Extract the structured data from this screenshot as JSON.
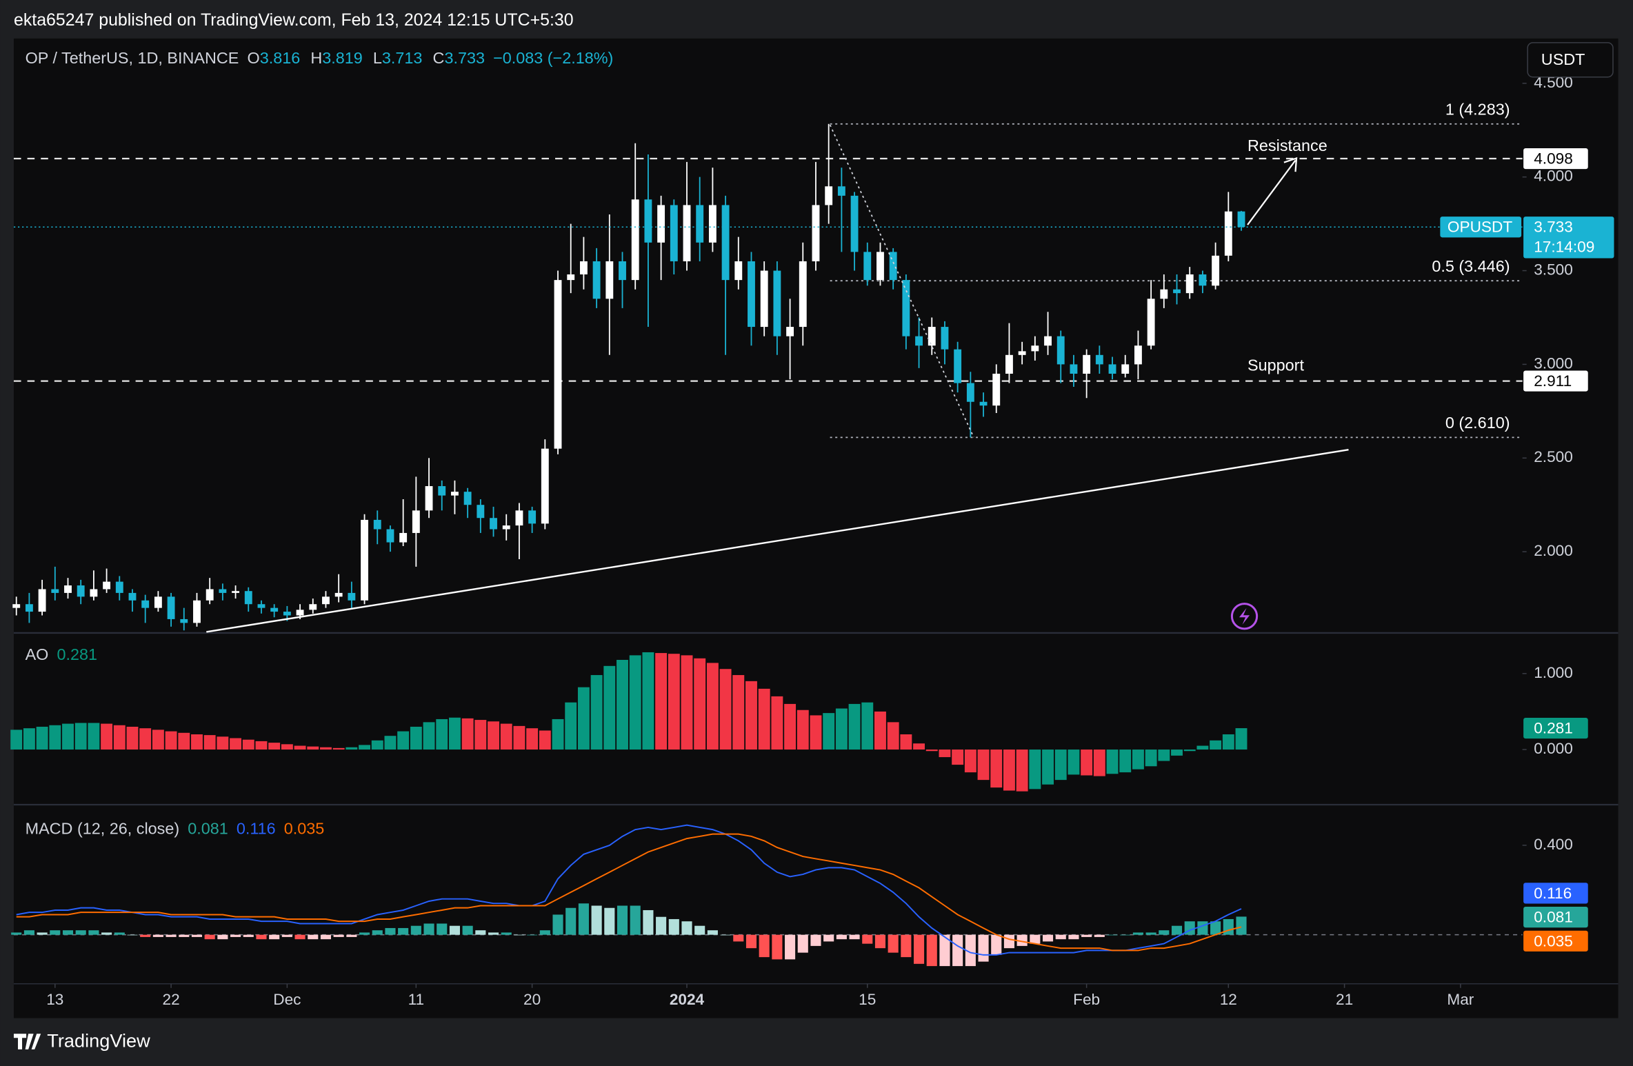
{
  "header": "ekta65247 published on TradingView.com, Feb 13, 2024 12:15 UTC+5:30",
  "footer": "TradingView",
  "chart_data": [
    {
      "type": "candlestick",
      "title": "OP / TetherUS, 1D, BINANCE",
      "ohlc_labels": [
        "O",
        "H",
        "L",
        "C"
      ],
      "change_label": "−0.083 (−2.18%)",
      "symbol": "OPUSDT",
      "countdown": "17:14:09",
      "currency": "USDT",
      "up_color": "#ffffff",
      "down_color": "#1ab3d3",
      "open": [
        1.7,
        1.72,
        1.68,
        1.8,
        1.78,
        1.82,
        1.76,
        1.8,
        1.84,
        1.78,
        1.74,
        1.7,
        1.76,
        1.64,
        1.62,
        1.74,
        1.8,
        1.78,
        1.79,
        1.72,
        1.7,
        1.68,
        1.66,
        1.69,
        1.72,
        1.76,
        1.78,
        1.74,
        2.17,
        2.12,
        2.05,
        2.1,
        2.22,
        2.35,
        2.3,
        2.32,
        2.25,
        2.18,
        2.12,
        2.14,
        2.22,
        2.15,
        2.55,
        3.45,
        3.48,
        3.55,
        3.35,
        3.55,
        3.45,
        3.88,
        3.65,
        3.85,
        3.55,
        3.85,
        3.65,
        3.85,
        3.45,
        3.55,
        3.2,
        3.5,
        3.15,
        3.2,
        3.55,
        3.85,
        3.95,
        3.9,
        3.6,
        3.45,
        3.6,
        3.45,
        3.15,
        3.1,
        3.2,
        3.08,
        2.9,
        2.8,
        2.78,
        2.95,
        3.05,
        3.07,
        3.1,
        3.15,
        3.0,
        2.95,
        3.05,
        3.0,
        2.95,
        3.0,
        3.1,
        3.35,
        3.4,
        3.38,
        3.48,
        3.42,
        3.58,
        3.816
      ],
      "high": [
        1.76,
        1.78,
        1.85,
        1.92,
        1.86,
        1.85,
        1.9,
        1.91,
        1.87,
        1.8,
        1.77,
        1.79,
        1.78,
        1.7,
        1.78,
        1.86,
        1.83,
        1.82,
        1.81,
        1.74,
        1.72,
        1.71,
        1.72,
        1.75,
        1.79,
        1.88,
        1.84,
        2.2,
        2.22,
        2.14,
        2.28,
        2.4,
        2.5,
        2.38,
        2.38,
        2.34,
        2.28,
        2.24,
        2.2,
        2.26,
        2.24,
        2.6,
        3.5,
        3.75,
        3.68,
        3.62,
        3.8,
        3.6,
        4.18,
        4.12,
        3.9,
        3.88,
        4.08,
        4.0,
        4.05,
        3.9,
        3.68,
        3.6,
        3.55,
        3.55,
        3.35,
        3.65,
        4.08,
        4.283,
        4.05,
        3.92,
        3.65,
        3.65,
        3.62,
        3.48,
        3.25,
        3.25,
        3.23,
        3.12,
        2.96,
        2.85,
        3.0,
        3.22,
        3.12,
        3.15,
        3.28,
        3.18,
        3.05,
        3.08,
        3.1,
        3.04,
        3.05,
        3.18,
        3.45,
        3.48,
        3.48,
        3.52,
        3.5,
        3.65,
        3.92,
        3.819
      ],
      "low": [
        1.66,
        1.62,
        1.66,
        1.74,
        1.75,
        1.72,
        1.74,
        1.78,
        1.74,
        1.68,
        1.62,
        1.68,
        1.6,
        1.58,
        1.6,
        1.72,
        1.74,
        1.75,
        1.68,
        1.67,
        1.65,
        1.63,
        1.64,
        1.67,
        1.7,
        1.73,
        1.7,
        1.72,
        2.04,
        2.0,
        2.03,
        1.92,
        2.18,
        2.22,
        2.2,
        2.18,
        2.1,
        2.08,
        2.06,
        1.96,
        2.1,
        2.12,
        2.52,
        3.38,
        3.4,
        3.3,
        3.05,
        3.3,
        3.4,
        3.2,
        3.45,
        3.48,
        3.5,
        3.55,
        3.6,
        3.05,
        3.4,
        3.1,
        3.15,
        3.05,
        2.92,
        3.1,
        3.5,
        3.75,
        3.6,
        3.5,
        3.42,
        3.42,
        3.4,
        3.08,
        2.98,
        3.05,
        3.0,
        2.85,
        2.61,
        2.72,
        2.74,
        2.9,
        3.0,
        3.02,
        3.05,
        2.9,
        2.88,
        2.82,
        2.95,
        2.92,
        2.93,
        2.92,
        3.08,
        3.3,
        3.32,
        3.35,
        3.38,
        3.4,
        3.55,
        3.713
      ],
      "close": [
        1.72,
        1.68,
        1.8,
        1.78,
        1.82,
        1.76,
        1.8,
        1.84,
        1.78,
        1.74,
        1.7,
        1.76,
        1.64,
        1.62,
        1.74,
        1.8,
        1.78,
        1.79,
        1.72,
        1.7,
        1.68,
        1.66,
        1.69,
        1.72,
        1.76,
        1.78,
        1.74,
        2.17,
        2.12,
        2.05,
        2.1,
        2.22,
        2.35,
        2.3,
        2.32,
        2.25,
        2.18,
        2.12,
        2.14,
        2.22,
        2.15,
        2.55,
        3.45,
        3.48,
        3.55,
        3.35,
        3.55,
        3.45,
        3.88,
        3.65,
        3.85,
        3.55,
        3.85,
        3.65,
        3.85,
        3.45,
        3.55,
        3.2,
        3.5,
        3.15,
        3.2,
        3.55,
        3.85,
        3.95,
        3.9,
        3.6,
        3.45,
        3.6,
        3.45,
        3.15,
        3.1,
        3.2,
        3.08,
        2.9,
        2.8,
        2.78,
        2.95,
        3.05,
        3.07,
        3.1,
        3.15,
        3.0,
        2.95,
        3.05,
        3.0,
        2.95,
        3.0,
        3.1,
        3.35,
        3.4,
        3.38,
        3.48,
        3.42,
        3.58,
        3.816,
        3.733
      ],
      "ylim": [
        1.572,
        4.739
      ],
      "yticks": [
        {
          "value": 4.5,
          "label": "4.500"
        },
        {
          "value": 4,
          "label": "4.000"
        },
        {
          "value": 3.5,
          "label": "3.500"
        },
        {
          "value": 3,
          "label": "3.000"
        },
        {
          "value": 2.5,
          "label": "2.500"
        },
        {
          "value": 2,
          "label": "2.000"
        }
      ],
      "xlim": [
        -0.2,
        116.8
      ],
      "xticks": [
        {
          "value": 3,
          "label": "13"
        },
        {
          "value": 12,
          "label": "22"
        },
        {
          "value": 21,
          "label": "Dec"
        },
        {
          "value": 31,
          "label": "11"
        },
        {
          "value": 40,
          "label": "20"
        },
        {
          "value": 52,
          "label": "2024"
        },
        {
          "value": 66,
          "label": "15"
        },
        {
          "value": 83,
          "label": "Feb"
        },
        {
          "value": 94,
          "label": "12"
        },
        {
          "value": 103,
          "label": "21"
        },
        {
          "value": 112,
          "label": "Mar"
        }
      ],
      "hlines": [
        4.098,
        2.911
      ],
      "fib": [
        {
          "label": "1 (4.283)",
          "value": 4.283
        },
        {
          "label": "0.5 (3.446)",
          "value": 3.446
        },
        {
          "label": "0 (2.610)",
          "value": 2.61
        }
      ],
      "annotations": [
        "Resistance",
        "Support"
      ]
    },
    {
      "type": "bar",
      "title": "AO",
      "up_color": "#089981",
      "down_color": "#f23645",
      "values": [
        0.26,
        0.28,
        0.3,
        0.32,
        0.34,
        0.35,
        0.35,
        0.34,
        0.32,
        0.3,
        0.28,
        0.26,
        0.24,
        0.22,
        0.2,
        0.19,
        0.17,
        0.15,
        0.13,
        0.11,
        0.09,
        0.07,
        0.05,
        0.04,
        0.03,
        0.02,
        0.03,
        0.06,
        0.12,
        0.18,
        0.24,
        0.3,
        0.36,
        0.4,
        0.42,
        0.41,
        0.39,
        0.37,
        0.34,
        0.31,
        0.28,
        0.25,
        0.4,
        0.62,
        0.82,
        0.98,
        1.1,
        1.18,
        1.24,
        1.28,
        1.27,
        1.26,
        1.24,
        1.2,
        1.14,
        1.06,
        0.98,
        0.9,
        0.8,
        0.7,
        0.6,
        0.52,
        0.45,
        0.48,
        0.54,
        0.6,
        0.62,
        0.5,
        0.36,
        0.2,
        0.08,
        -0.02,
        -0.1,
        -0.2,
        -0.3,
        -0.4,
        -0.5,
        -0.54,
        -0.55,
        -0.52,
        -0.46,
        -0.4,
        -0.33,
        -0.34,
        -0.35,
        -0.32,
        -0.3,
        -0.26,
        -0.22,
        -0.15,
        -0.08,
        -0.02,
        0.05,
        0.12,
        0.2,
        0.281
      ],
      "ylim": [
        -0.726,
        1.507
      ],
      "yticks": [
        {
          "value": 1,
          "label": "1.000"
        },
        {
          "value": 0,
          "label": "0.000"
        }
      ]
    },
    {
      "type": "macd",
      "title": "MACD (12, 26, close)",
      "series": [
        {
          "kind": "histogram",
          "color": "#26a69a",
          "values": [
            0.01,
            0.02,
            0.01,
            0.02,
            0.02,
            0.02,
            0.02,
            0.01,
            0.01,
            0.0,
            -0.01,
            -0.01,
            -0.01,
            -0.01,
            -0.01,
            -0.02,
            -0.02,
            -0.01,
            -0.01,
            -0.02,
            -0.02,
            -0.01,
            -0.02,
            -0.02,
            -0.02,
            -0.01,
            -0.01,
            0.01,
            0.02,
            0.03,
            0.03,
            0.04,
            0.05,
            0.05,
            0.04,
            0.04,
            0.02,
            0.01,
            0.01,
            0.0,
            0.0,
            0.02,
            0.09,
            0.12,
            0.14,
            0.13,
            0.12,
            0.13,
            0.13,
            0.11,
            0.08,
            0.07,
            0.06,
            0.04,
            0.02,
            0.0,
            -0.03,
            -0.06,
            -0.1,
            -0.11,
            -0.11,
            -0.08,
            -0.05,
            -0.03,
            -0.02,
            -0.02,
            -0.04,
            -0.06,
            -0.08,
            -0.1,
            -0.13,
            -0.14,
            -0.14,
            -0.14,
            -0.14,
            -0.12,
            -0.09,
            -0.06,
            -0.05,
            -0.04,
            -0.03,
            -0.02,
            -0.02,
            -0.01,
            -0.01,
            0.0,
            0.0,
            0.01,
            0.01,
            0.02,
            0.04,
            0.06,
            0.06,
            0.06,
            0.07,
            0.081
          ]
        },
        {
          "kind": "line",
          "color": "#2962ff",
          "values": [
            0.09,
            0.1,
            0.1,
            0.11,
            0.11,
            0.12,
            0.12,
            0.11,
            0.11,
            0.1,
            0.09,
            0.09,
            0.08,
            0.08,
            0.08,
            0.07,
            0.07,
            0.07,
            0.07,
            0.06,
            0.06,
            0.06,
            0.05,
            0.05,
            0.05,
            0.05,
            0.05,
            0.07,
            0.09,
            0.1,
            0.11,
            0.13,
            0.15,
            0.16,
            0.16,
            0.16,
            0.15,
            0.14,
            0.14,
            0.13,
            0.13,
            0.15,
            0.25,
            0.31,
            0.36,
            0.38,
            0.4,
            0.44,
            0.47,
            0.48,
            0.47,
            0.48,
            0.49,
            0.48,
            0.47,
            0.45,
            0.42,
            0.38,
            0.32,
            0.28,
            0.26,
            0.27,
            0.29,
            0.3,
            0.3,
            0.29,
            0.26,
            0.23,
            0.19,
            0.14,
            0.08,
            0.03,
            -0.01,
            -0.05,
            -0.08,
            -0.09,
            -0.09,
            -0.08,
            -0.08,
            -0.08,
            -0.08,
            -0.08,
            -0.08,
            -0.07,
            -0.07,
            -0.07,
            -0.07,
            -0.06,
            -0.05,
            -0.04,
            -0.01,
            0.02,
            0.04,
            0.06,
            0.09,
            0.116
          ]
        },
        {
          "kind": "line",
          "color": "#ff6d00",
          "values": [
            0.08,
            0.08,
            0.09,
            0.09,
            0.09,
            0.1,
            0.1,
            0.1,
            0.1,
            0.1,
            0.1,
            0.1,
            0.09,
            0.09,
            0.09,
            0.09,
            0.09,
            0.08,
            0.08,
            0.08,
            0.08,
            0.07,
            0.07,
            0.07,
            0.07,
            0.06,
            0.06,
            0.06,
            0.07,
            0.07,
            0.08,
            0.09,
            0.1,
            0.11,
            0.12,
            0.12,
            0.13,
            0.13,
            0.13,
            0.13,
            0.13,
            0.13,
            0.16,
            0.19,
            0.22,
            0.25,
            0.28,
            0.31,
            0.34,
            0.37,
            0.39,
            0.41,
            0.43,
            0.44,
            0.45,
            0.45,
            0.45,
            0.44,
            0.42,
            0.39,
            0.37,
            0.35,
            0.34,
            0.33,
            0.32,
            0.31,
            0.3,
            0.29,
            0.27,
            0.24,
            0.21,
            0.17,
            0.13,
            0.09,
            0.06,
            0.03,
            0.0,
            -0.02,
            -0.03,
            -0.04,
            -0.05,
            -0.06,
            -0.06,
            -0.06,
            -0.06,
            -0.07,
            -0.07,
            -0.07,
            -0.06,
            -0.06,
            -0.05,
            -0.04,
            -0.02,
            0.0,
            0.02,
            0.035
          ]
        }
      ],
      "ylim": [
        -0.219,
        0.572
      ],
      "yticks": [
        {
          "value": 0.4,
          "label": "0.400"
        }
      ]
    }
  ]
}
